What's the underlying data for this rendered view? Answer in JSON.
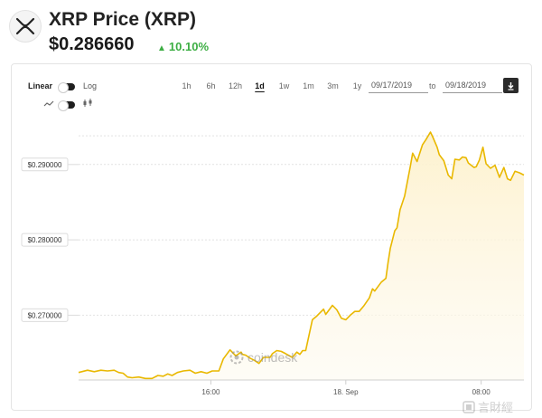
{
  "header": {
    "title": "XRP Price (XRP)",
    "price": "$0.286660",
    "change": "10.10%"
  },
  "controls": {
    "linear_label": "Linear",
    "log_label": "Log",
    "ranges": [
      "1h",
      "6h",
      "12h",
      "1d",
      "1w",
      "1m",
      "3m",
      "1y"
    ],
    "active_range": "1d",
    "date_from": "09/17/2019",
    "date_to": "09/18/2019",
    "to_label": "to"
  },
  "watermark": "coindesk",
  "corner_watermark": "言財經",
  "colors": {
    "line": "#e9b800",
    "fill_top": "#fdf1cc",
    "up": "#3dae44"
  },
  "chart_data": {
    "type": "area",
    "title": "",
    "xlabel": "",
    "ylabel": "",
    "ylim": [
      0.2614,
      0.2955
    ],
    "y_ticks": [
      "$0.270000",
      "$0.280000",
      "$0.290000"
    ],
    "y_tick_values": [
      0.27,
      0.28,
      0.29
    ],
    "x_ticks": [
      "16:00",
      "18. Sep",
      "08:00"
    ],
    "x_tick_positions": [
      0.297,
      0.6,
      0.904
    ],
    "grid": true,
    "series": [
      {
        "x": [
          0,
          0.02,
          0.035,
          0.05,
          0.065,
          0.08,
          0.09,
          0.1,
          0.11,
          0.12,
          0.135,
          0.15,
          0.165,
          0.178,
          0.19,
          0.2,
          0.21,
          0.222,
          0.235,
          0.25,
          0.262,
          0.275,
          0.288,
          0.3,
          0.315,
          0.325,
          0.34,
          0.353,
          0.365,
          0.368,
          0.375,
          0.385,
          0.395,
          0.405,
          0.415,
          0.43,
          0.435,
          0.445,
          0.455,
          0.465,
          0.48,
          0.49,
          0.497,
          0.503,
          0.51,
          0.525,
          0.535,
          0.55,
          0.555,
          0.57,
          0.58,
          0.59,
          0.6,
          0.61,
          0.62,
          0.63,
          0.64,
          0.653,
          0.66,
          0.665,
          0.68,
          0.69,
          0.695,
          0.7,
          0.71,
          0.715,
          0.722,
          0.732,
          0.745,
          0.75,
          0.76,
          0.772,
          0.78,
          0.79,
          0.795,
          0.805,
          0.81,
          0.82,
          0.83,
          0.838,
          0.845,
          0.855,
          0.862,
          0.87,
          0.875,
          0.888,
          0.893,
          0.9,
          0.908,
          0.915,
          0.925,
          0.935,
          0.945,
          0.955,
          0.963,
          0.97,
          0.98,
          0.99,
          1.0
        ],
        "y": [
          0.2624,
          0.2627,
          0.2625,
          0.2627,
          0.2626,
          0.2627,
          0.2624,
          0.2623,
          0.2618,
          0.2617,
          0.2618,
          0.2616,
          0.2616,
          0.262,
          0.2619,
          0.2622,
          0.262,
          0.2624,
          0.2626,
          0.2627,
          0.2623,
          0.2625,
          0.2623,
          0.2626,
          0.2626,
          0.2642,
          0.2654,
          0.2646,
          0.2651,
          0.2648,
          0.2647,
          0.2643,
          0.264,
          0.2636,
          0.2644,
          0.2644,
          0.2649,
          0.2653,
          0.2652,
          0.2649,
          0.2644,
          0.2651,
          0.2648,
          0.2653,
          0.2653,
          0.2694,
          0.2699,
          0.2708,
          0.2701,
          0.2713,
          0.2707,
          0.2696,
          0.2694,
          0.27,
          0.2705,
          0.2705,
          0.2712,
          0.2723,
          0.2735,
          0.2732,
          0.2744,
          0.2749,
          0.277,
          0.2789,
          0.2812,
          0.2816,
          0.284,
          0.2858,
          0.2898,
          0.2915,
          0.2904,
          0.2926,
          0.2933,
          0.2943,
          0.2937,
          0.2923,
          0.2913,
          0.2905,
          0.2886,
          0.2881,
          0.2907,
          0.2906,
          0.291,
          0.2909,
          0.2902,
          0.2896,
          0.2897,
          0.2906,
          0.2923,
          0.2901,
          0.2895,
          0.2899,
          0.2883,
          0.2896,
          0.2881,
          0.2879,
          0.2891,
          0.2889,
          0.2886
        ]
      }
    ]
  }
}
